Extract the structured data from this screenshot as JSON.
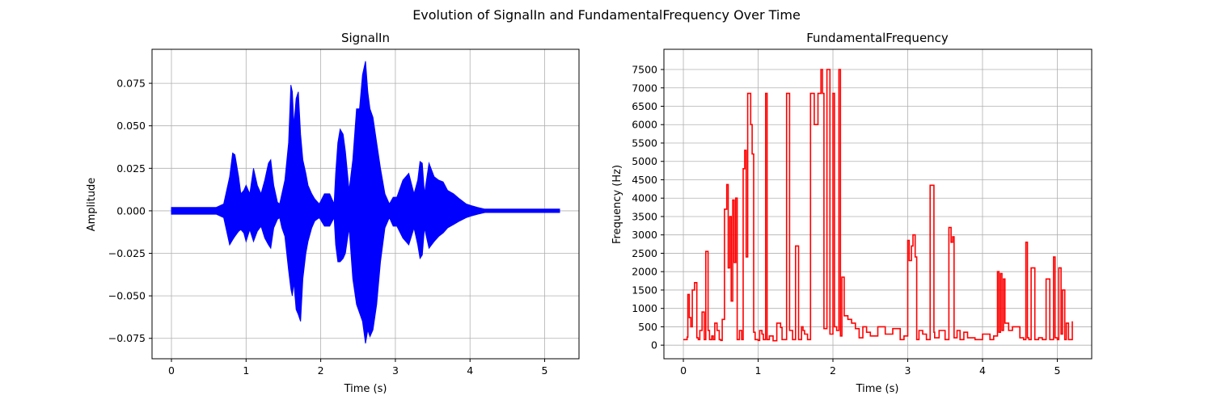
{
  "figure": {
    "suptitle": "Evolution of SignalIn and FundamentalFrequency Over Time"
  },
  "chart_data": [
    {
      "type": "line",
      "title": "SignalIn",
      "xlabel": "Time (s)",
      "ylabel": "Amplitude",
      "xlim": [
        -0.26,
        5.46
      ],
      "ylim": [
        -0.087,
        0.095
      ],
      "xticks": [
        0,
        1,
        2,
        3,
        4,
        5
      ],
      "xtick_labels": [
        "0",
        "1",
        "2",
        "3",
        "4",
        "5"
      ],
      "yticks": [
        -0.075,
        -0.05,
        -0.025,
        0,
        0.025,
        0.05,
        0.075
      ],
      "ytick_labels": [
        "−0.075",
        "−0.050",
        "−0.025",
        "0.000",
        "0.025",
        "0.050",
        "0.075"
      ],
      "grid": true,
      "color": "#0000ff",
      "series": [
        {
          "kind": "envelope",
          "x": [
            0.0,
            0.6,
            0.7,
            0.78,
            0.82,
            0.85,
            0.9,
            0.93,
            0.97,
            1.0,
            1.05,
            1.1,
            1.15,
            1.2,
            1.25,
            1.3,
            1.33,
            1.37,
            1.42,
            1.45,
            1.48,
            1.52,
            1.57,
            1.6,
            1.62,
            1.64,
            1.67,
            1.7,
            1.73,
            1.76,
            1.8,
            1.83,
            1.88,
            1.92,
            1.98,
            2.05,
            2.12,
            2.18,
            2.2,
            2.23,
            2.26,
            2.3,
            2.33,
            2.38,
            2.43,
            2.48,
            2.52,
            2.56,
            2.6,
            2.63,
            2.66,
            2.7,
            2.75,
            2.8,
            2.86,
            2.92,
            2.97,
            3.02,
            3.1,
            3.18,
            3.25,
            3.3,
            3.33,
            3.36,
            3.39,
            3.45,
            3.52,
            3.58,
            3.64,
            3.7,
            3.78,
            3.86,
            3.95,
            4.02,
            4.1,
            4.2,
            5.2
          ],
          "max": [
            0.002,
            0.002,
            0.004,
            0.02,
            0.034,
            0.033,
            0.02,
            0.01,
            0.012,
            0.015,
            0.01,
            0.025,
            0.015,
            0.01,
            0.018,
            0.028,
            0.03,
            0.015,
            0.005,
            0.004,
            0.01,
            0.018,
            0.04,
            0.074,
            0.07,
            0.05,
            0.066,
            0.07,
            0.045,
            0.03,
            0.022,
            0.015,
            0.01,
            0.007,
            0.004,
            0.01,
            0.01,
            0.004,
            0.022,
            0.04,
            0.048,
            0.045,
            0.035,
            0.012,
            0.03,
            0.06,
            0.06,
            0.08,
            0.088,
            0.07,
            0.06,
            0.055,
            0.04,
            0.025,
            0.01,
            0.004,
            0.008,
            0.008,
            0.018,
            0.022,
            0.01,
            0.018,
            0.029,
            0.028,
            0.01,
            0.028,
            0.02,
            0.018,
            0.017,
            0.012,
            0.01,
            0.007,
            0.004,
            0.003,
            0.002,
            0.001,
            0.001
          ],
          "min": [
            -0.002,
            -0.002,
            -0.004,
            -0.02,
            -0.017,
            -0.015,
            -0.012,
            -0.011,
            -0.013,
            -0.018,
            -0.011,
            -0.018,
            -0.012,
            -0.009,
            -0.016,
            -0.02,
            -0.022,
            -0.01,
            -0.005,
            -0.004,
            -0.01,
            -0.015,
            -0.035,
            -0.046,
            -0.05,
            -0.042,
            -0.058,
            -0.061,
            -0.065,
            -0.04,
            -0.025,
            -0.018,
            -0.01,
            -0.006,
            -0.004,
            -0.009,
            -0.009,
            -0.004,
            -0.02,
            -0.03,
            -0.03,
            -0.028,
            -0.025,
            -0.01,
            -0.04,
            -0.055,
            -0.06,
            -0.065,
            -0.078,
            -0.07,
            -0.074,
            -0.07,
            -0.055,
            -0.03,
            -0.01,
            -0.004,
            -0.009,
            -0.009,
            -0.016,
            -0.02,
            -0.01,
            -0.02,
            -0.028,
            -0.026,
            -0.01,
            -0.022,
            -0.018,
            -0.015,
            -0.013,
            -0.01,
            -0.008,
            -0.006,
            -0.004,
            -0.003,
            -0.002,
            -0.001,
            -0.001
          ]
        }
      ]
    },
    {
      "type": "line",
      "title": "FundamentalFrequency",
      "xlabel": "Time (s)",
      "ylabel": "Frequency (Hz)",
      "xlim": [
        -0.26,
        5.46
      ],
      "ylim": [
        -370,
        8050
      ],
      "xticks": [
        0,
        1,
        2,
        3,
        4,
        5
      ],
      "xtick_labels": [
        "0",
        "1",
        "2",
        "3",
        "4",
        "5"
      ],
      "yticks": [
        0,
        500,
        1000,
        1500,
        2000,
        2500,
        3000,
        3500,
        4000,
        4500,
        5000,
        5500,
        6000,
        6500,
        7000,
        7500
      ],
      "ytick_labels": [
        "0",
        "500",
        "1000",
        "1500",
        "2000",
        "2500",
        "3000",
        "3500",
        "4000",
        "4500",
        "5000",
        "5500",
        "6000",
        "6500",
        "7000",
        "7500"
      ],
      "grid": true,
      "color": "#ff0000",
      "series": [
        {
          "kind": "step",
          "x": [
            0.0,
            0.05,
            0.06,
            0.08,
            0.1,
            0.12,
            0.15,
            0.18,
            0.2,
            0.22,
            0.25,
            0.28,
            0.3,
            0.33,
            0.35,
            0.38,
            0.4,
            0.42,
            0.45,
            0.48,
            0.5,
            0.52,
            0.55,
            0.58,
            0.6,
            0.62,
            0.64,
            0.66,
            0.68,
            0.7,
            0.72,
            0.75,
            0.78,
            0.8,
            0.82,
            0.84,
            0.86,
            0.88,
            0.9,
            0.92,
            0.94,
            0.96,
            0.98,
            1.0,
            1.02,
            1.05,
            1.07,
            1.1,
            1.12,
            1.15,
            1.2,
            1.25,
            1.3,
            1.32,
            1.34,
            1.38,
            1.42,
            1.46,
            1.5,
            1.54,
            1.58,
            1.6,
            1.62,
            1.66,
            1.7,
            1.75,
            1.8,
            1.82,
            1.84,
            1.86,
            1.88,
            1.92,
            1.96,
            2.0,
            2.02,
            2.05,
            2.08,
            2.1,
            2.12,
            2.15,
            2.2,
            2.25,
            2.3,
            2.35,
            2.4,
            2.45,
            2.5,
            2.6,
            2.7,
            2.8,
            2.9,
            2.95,
            3.0,
            3.02,
            3.05,
            3.07,
            3.1,
            3.12,
            3.15,
            3.2,
            3.25,
            3.3,
            3.35,
            3.36,
            3.38,
            3.42,
            3.5,
            3.55,
            3.58,
            3.6,
            3.62,
            3.66,
            3.7,
            3.75,
            3.8,
            3.9,
            4.0,
            4.1,
            4.15,
            4.2,
            4.22,
            4.24,
            4.26,
            4.28,
            4.3,
            4.35,
            4.4,
            4.5,
            4.55,
            4.58,
            4.6,
            4.62,
            4.65,
            4.7,
            4.75,
            4.8,
            4.85,
            4.9,
            4.95,
            4.97,
            5.0,
            5.02,
            5.05,
            5.07,
            5.1,
            5.12,
            5.15,
            5.2
          ],
          "y": [
            150,
            220,
            1380,
            750,
            500,
            1500,
            1700,
            200,
            150,
            400,
            900,
            150,
            2550,
            400,
            150,
            250,
            150,
            600,
            400,
            150,
            130,
            700,
            3700,
            4370,
            2100,
            3500,
            1200,
            3950,
            2250,
            4000,
            150,
            400,
            150,
            4800,
            5300,
            2400,
            6850,
            6850,
            6000,
            5200,
            350,
            150,
            150,
            130,
            400,
            300,
            150,
            6850,
            150,
            250,
            120,
            600,
            480,
            150,
            150,
            6850,
            400,
            150,
            2700,
            150,
            500,
            400,
            300,
            150,
            6850,
            6000,
            6850,
            6850,
            7500,
            6850,
            450,
            7500,
            300,
            6850,
            500,
            400,
            7500,
            250,
            1850,
            800,
            700,
            600,
            450,
            200,
            500,
            350,
            250,
            500,
            300,
            450,
            150,
            250,
            2850,
            2300,
            2700,
            3000,
            2400,
            150,
            400,
            300,
            150,
            4350,
            350,
            200,
            200,
            400,
            150,
            3200,
            2800,
            2950,
            200,
            400,
            150,
            350,
            200,
            150,
            300,
            150,
            250,
            2000,
            350,
            1950,
            400,
            1800,
            600,
            400,
            500,
            200,
            150,
            2800,
            200,
            150,
            2100,
            150,
            200,
            150,
            1800,
            150,
            2400,
            200,
            150,
            2100,
            300,
            1500,
            150,
            600,
            150,
            650
          ]
        }
      ]
    }
  ]
}
